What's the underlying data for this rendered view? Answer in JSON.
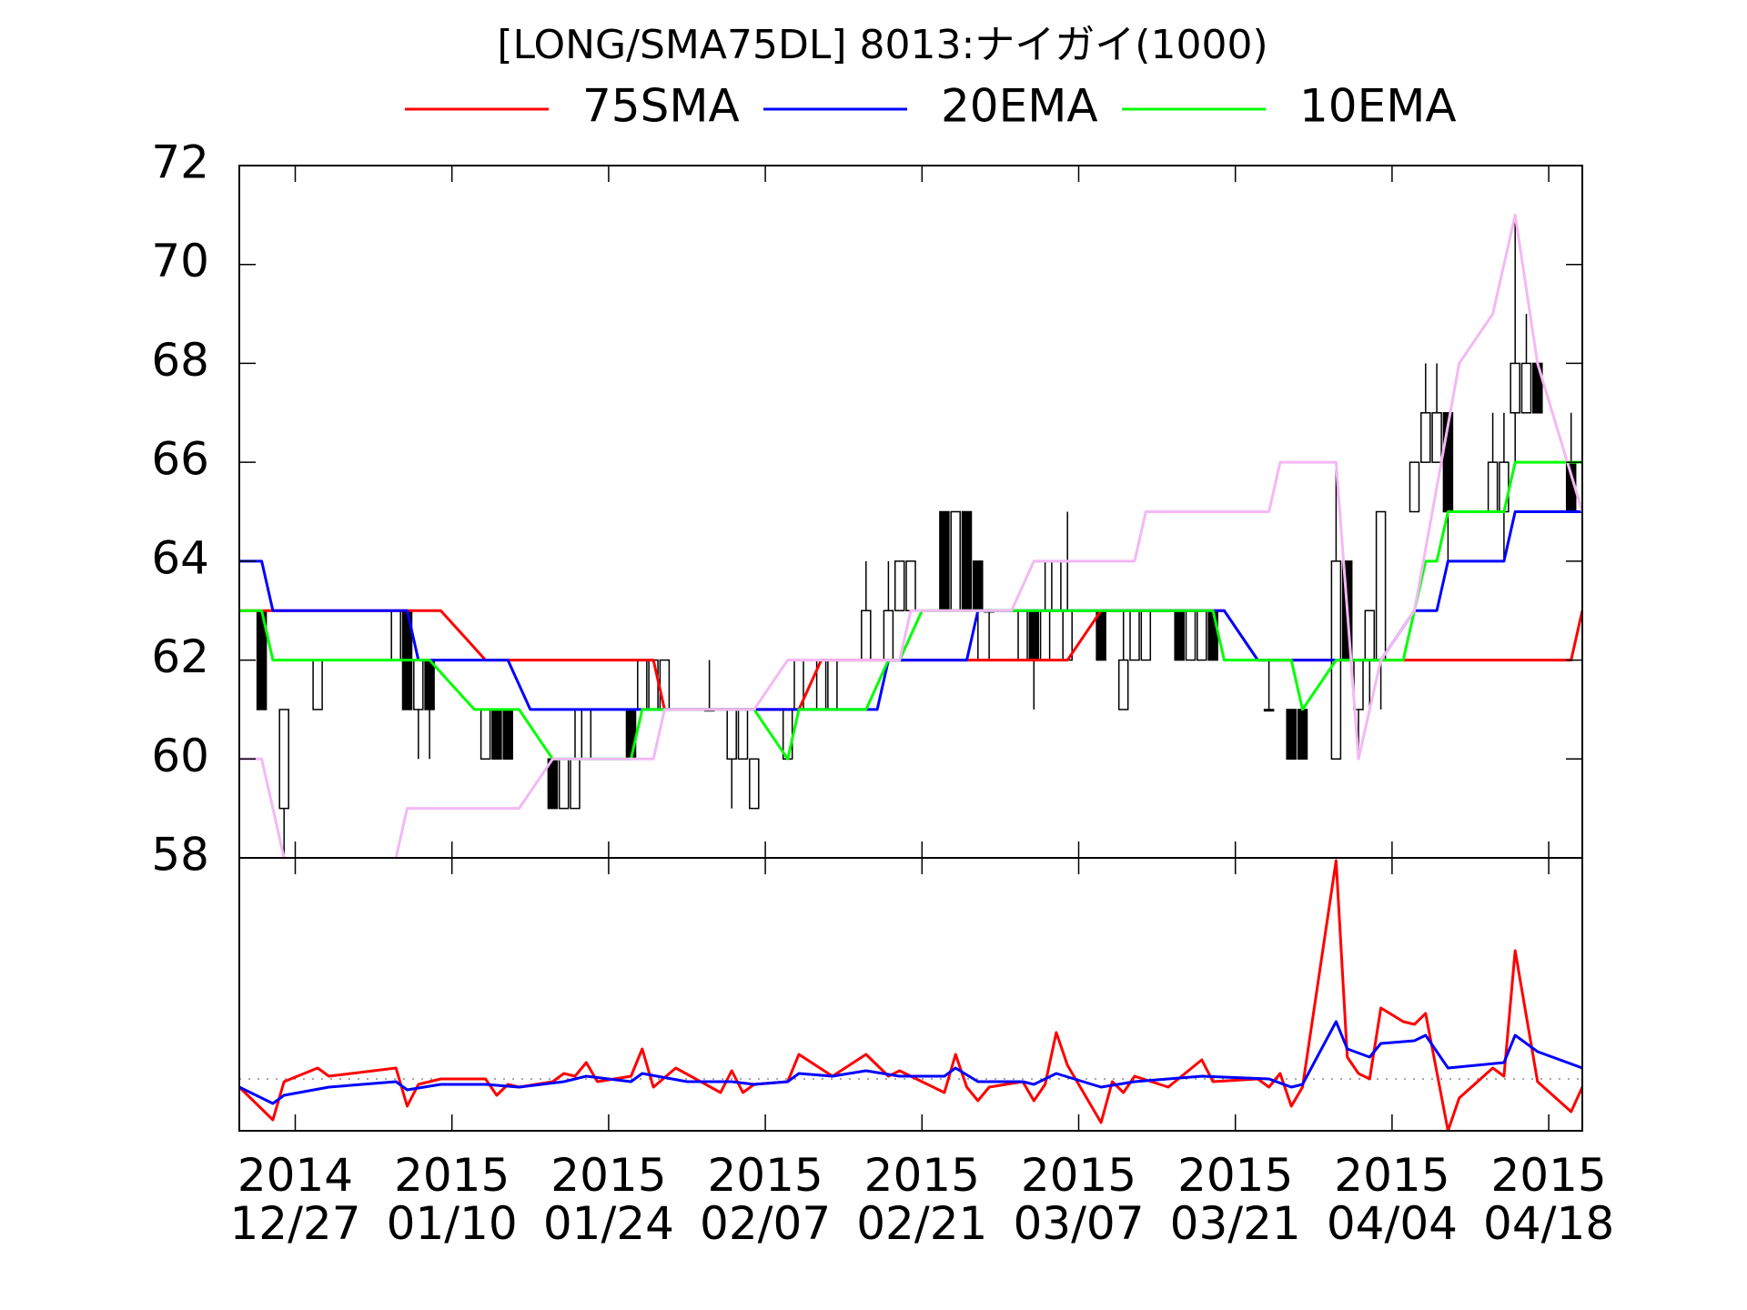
{
  "chart_data": [
    {
      "type": "candlestick",
      "title": "[LONG/SMA75DL] 8013:ナイガイ(1000)",
      "xlim": [
        "2014-12-22",
        "2015-04-21"
      ],
      "ylim": [
        58,
        72
      ],
      "yticks": [
        58,
        60,
        62,
        64,
        66,
        68,
        70,
        72
      ],
      "candles": {
        "x": [
          "2014-12-24",
          "2014-12-26",
          "2014-12-29",
          "2015-01-05",
          "2015-01-06",
          "2015-01-07",
          "2015-01-08",
          "2015-01-13",
          "2015-01-14",
          "2015-01-15",
          "2015-01-19",
          "2015-01-20",
          "2015-01-21",
          "2015-01-22",
          "2015-01-26",
          "2015-01-27",
          "2015-01-28",
          "2015-01-29",
          "2015-02-02",
          "2015-02-04",
          "2015-02-05",
          "2015-02-06",
          "2015-02-09",
          "2015-02-10",
          "2015-02-12",
          "2015-02-13",
          "2015-02-16",
          "2015-02-18",
          "2015-02-19",
          "2015-02-20",
          "2015-02-23",
          "2015-02-24",
          "2015-02-25",
          "2015-02-26",
          "2015-02-27",
          "2015-03-02",
          "2015-03-03",
          "2015-03-04",
          "2015-03-05",
          "2015-03-06",
          "2015-03-09",
          "2015-03-11",
          "2015-03-12",
          "2015-03-13",
          "2015-03-16",
          "2015-03-17",
          "2015-03-18",
          "2015-03-19",
          "2015-03-24",
          "2015-03-26",
          "2015-03-27",
          "2015-03-30",
          "2015-03-31",
          "2015-04-01",
          "2015-04-02",
          "2015-04-03",
          "2015-04-06",
          "2015-04-07",
          "2015-04-08",
          "2015-04-09",
          "2015-04-13",
          "2015-04-14",
          "2015-04-15",
          "2015-04-16",
          "2015-04-17",
          "2015-04-20"
        ],
        "open": [
          63,
          59,
          61,
          62,
          63,
          61,
          62,
          60,
          61,
          61,
          60,
          59,
          59,
          60,
          61,
          61,
          61,
          61,
          61,
          60,
          60,
          59,
          60,
          61,
          61,
          61,
          62,
          62,
          63,
          63,
          65,
          63,
          65,
          64,
          63,
          62,
          63,
          62,
          63,
          62,
          63,
          61,
          62,
          62,
          63,
          62,
          62,
          63,
          61,
          61,
          61,
          60,
          64,
          61,
          62,
          62,
          65,
          66,
          66,
          67,
          65,
          65,
          67,
          67,
          68,
          66
        ],
        "high": [
          63,
          61,
          62,
          63,
          63,
          62,
          62,
          61,
          61,
          61,
          60,
          60,
          61,
          61,
          61,
          62,
          62,
          62,
          62,
          61,
          61,
          60,
          61,
          62,
          62,
          62,
          64,
          64,
          64,
          64,
          65,
          65,
          65,
          64,
          63,
          63,
          63,
          64,
          64,
          65,
          63,
          63,
          63,
          63,
          63,
          63,
          63,
          63,
          62,
          61,
          61,
          66,
          64,
          62,
          63,
          65,
          66,
          68,
          68,
          67,
          67,
          67,
          71,
          69,
          68,
          67
        ],
        "low": [
          61,
          58,
          61,
          62,
          61,
          60,
          60,
          60,
          60,
          60,
          59,
          59,
          59,
          60,
          60,
          61,
          61,
          61,
          61,
          59,
          60,
          59,
          60,
          61,
          61,
          61,
          62,
          62,
          63,
          63,
          63,
          63,
          63,
          62,
          62,
          62,
          61,
          62,
          63,
          62,
          62,
          61,
          62,
          62,
          62,
          62,
          62,
          62,
          61,
          60,
          60,
          60,
          62,
          60,
          61,
          61,
          65,
          66,
          66,
          64,
          65,
          64,
          66,
          67,
          67,
          65
        ],
        "close": [
          61,
          61,
          62,
          63,
          61,
          62,
          61,
          61,
          60,
          60,
          59,
          60,
          60,
          61,
          60,
          62,
          62,
          62,
          61,
          61,
          61,
          60,
          61,
          62,
          62,
          62,
          63,
          63,
          64,
          64,
          63,
          65,
          63,
          63,
          63,
          63,
          62,
          63,
          64,
          63,
          62,
          62,
          63,
          63,
          62,
          63,
          63,
          62,
          61,
          60,
          60,
          64,
          62,
          62,
          63,
          65,
          66,
          67,
          67,
          65,
          66,
          66,
          68,
          68,
          67,
          65
        ]
      },
      "series": [
        {
          "name": "75SMA",
          "color": "#ff0000",
          "x": [
            "2014-12-22",
            "2015-01-09",
            "2015-01-13",
            "2015-01-28",
            "2015-01-29",
            "2015-02-10",
            "2015-02-12",
            "2015-03-06",
            "2015-03-09",
            "2015-03-20",
            "2015-03-23",
            "2015-04-20",
            "2015-04-21"
          ],
          "values": [
            63,
            63,
            62,
            62,
            61,
            61,
            62,
            62,
            63,
            63,
            62,
            62,
            63
          ]
        },
        {
          "name": "20EMA",
          "color": "#0000ff",
          "x": [
            "2014-12-22",
            "2014-12-24",
            "2014-12-25",
            "2015-01-06",
            "2015-01-07",
            "2015-01-15",
            "2015-01-17",
            "2015-02-17",
            "2015-02-18",
            "2015-02-25",
            "2015-02-26",
            "2015-03-20",
            "2015-03-23",
            "2015-04-03",
            "2015-04-06",
            "2015-04-08",
            "2015-04-09",
            "2015-04-14",
            "2015-04-15",
            "2015-04-21"
          ],
          "values": [
            64,
            64,
            63,
            63,
            62,
            62,
            61,
            61,
            62,
            62,
            63,
            63,
            62,
            62,
            63,
            63,
            64,
            64,
            65,
            65
          ]
        },
        {
          "name": "10EMA",
          "color": "#00ff00",
          "x": [
            "2014-12-22",
            "2014-12-24",
            "2014-12-25",
            "2015-01-08",
            "2015-01-12",
            "2015-01-16",
            "2015-01-19",
            "2015-01-26",
            "2015-01-27",
            "2015-02-06",
            "2015-02-09",
            "2015-02-10",
            "2015-02-16",
            "2015-02-18",
            "2015-02-19",
            "2015-02-21",
            "2015-03-19",
            "2015-03-20",
            "2015-03-26",
            "2015-03-27",
            "2015-03-30",
            "2015-04-05",
            "2015-04-06",
            "2015-04-07",
            "2015-04-08",
            "2015-04-09",
            "2015-04-14",
            "2015-04-15",
            "2015-04-21"
          ],
          "values": [
            63,
            63,
            62,
            62,
            61,
            61,
            60,
            60,
            61,
            61,
            60,
            61,
            61,
            62,
            62,
            63,
            63,
            62,
            62,
            61,
            62,
            62,
            63,
            64,
            64,
            65,
            65,
            66,
            66
          ]
        },
        {
          "color": "#f4b8f4",
          "x": [
            "2014-12-22",
            "2014-12-24",
            "2014-12-26",
            "2014-12-31",
            "2015-01-05",
            "2015-01-06",
            "2015-01-16",
            "2015-01-19",
            "2015-01-28",
            "2015-01-29",
            "2015-02-06",
            "2015-02-09",
            "2015-02-19",
            "2015-02-20",
            "2015-03-01",
            "2015-03-03",
            "2015-03-12",
            "2015-03-13",
            "2015-03-24",
            "2015-03-25",
            "2015-03-30",
            "2015-04-01",
            "2015-04-03",
            "2015-04-06",
            "2015-04-10",
            "2015-04-13",
            "2015-04-15",
            "2015-04-17",
            "2015-04-21"
          ],
          "values": [
            60,
            60,
            58,
            null,
            58,
            59,
            59,
            60,
            60,
            61,
            61,
            62,
            62,
            63,
            63,
            64,
            64,
            65,
            65,
            66,
            66,
            60,
            62,
            63,
            68,
            69,
            71,
            68,
            65
          ]
        }
      ]
    },
    {
      "type": "line",
      "xlim": [
        "2014-12-22",
        "2015-04-21"
      ],
      "ylim": [
        0,
        100
      ],
      "reference_line": 19,
      "xticks": [
        {
          "value": "2014-12-27",
          "label": "2014\n12/27"
        },
        {
          "value": "2015-01-10",
          "label": "2015\n01/10"
        },
        {
          "value": "2015-01-24",
          "label": "2015\n01/24"
        },
        {
          "value": "2015-02-07",
          "label": "2015\n02/07"
        },
        {
          "value": "2015-02-21",
          "label": "2015\n02/21"
        },
        {
          "value": "2015-03-07",
          "label": "2015\n03/07"
        },
        {
          "value": "2015-03-21",
          "label": "2015\n03/21"
        },
        {
          "value": "2015-04-04",
          "label": "2015\n04/04"
        },
        {
          "value": "2015-04-18",
          "label": "2015\n04/18"
        }
      ],
      "series": [
        {
          "color": "#ff0000",
          "x": [
            "2014-12-22",
            "2014-12-25",
            "2014-12-26",
            "2014-12-29",
            "2014-12-30",
            "2015-01-05",
            "2015-01-06",
            "2015-01-07",
            "2015-01-09",
            "2015-01-13",
            "2015-01-14",
            "2015-01-15",
            "2015-01-16",
            "2015-01-19",
            "2015-01-20",
            "2015-01-21",
            "2015-01-22",
            "2015-01-23",
            "2015-01-26",
            "2015-01-27",
            "2015-01-28",
            "2015-01-30",
            "2015-02-03",
            "2015-02-04",
            "2015-02-05",
            "2015-02-06",
            "2015-02-09",
            "2015-02-10",
            "2015-02-13",
            "2015-02-16",
            "2015-02-18",
            "2015-02-19",
            "2015-02-23",
            "2015-02-24",
            "2015-02-25",
            "2015-02-26",
            "2015-02-27",
            "2015-03-02",
            "2015-03-03",
            "2015-03-04",
            "2015-03-05",
            "2015-03-06",
            "2015-03-09",
            "2015-03-10",
            "2015-03-11",
            "2015-03-12",
            "2015-03-15",
            "2015-03-18",
            "2015-03-19",
            "2015-03-23",
            "2015-03-24",
            "2015-03-25",
            "2015-03-26",
            "2015-03-27",
            "2015-03-30",
            "2015-03-31",
            "2015-04-01",
            "2015-04-02",
            "2015-04-03",
            "2015-04-05",
            "2015-04-06",
            "2015-04-07",
            "2015-04-09",
            "2015-04-10",
            "2015-04-13",
            "2015-04-14",
            "2015-04-15",
            "2015-04-17",
            "2015-04-20",
            "2015-04-21"
          ],
          "values": [
            16,
            4,
            18,
            23,
            20,
            23,
            9,
            17,
            19,
            19,
            13,
            17,
            16,
            18,
            21,
            20,
            25,
            18,
            20,
            30,
            16,
            23,
            14,
            22,
            14,
            17,
            18,
            28,
            20,
            28,
            20,
            22,
            14,
            28,
            16,
            11,
            16,
            18,
            11,
            17,
            36,
            24,
            3,
            18,
            14,
            20,
            16,
            26,
            18,
            19,
            16,
            21,
            9,
            16,
            99,
            27,
            21,
            19,
            45,
            40,
            39,
            43,
            0,
            12,
            23,
            20,
            66,
            18,
            7,
            16
          ]
        },
        {
          "color": "#0000ff",
          "x": [
            "2014-12-22",
            "2014-12-25",
            "2014-12-26",
            "2014-12-30",
            "2015-01-05",
            "2015-01-06",
            "2015-01-09",
            "2015-01-13",
            "2015-01-16",
            "2015-01-20",
            "2015-01-22",
            "2015-01-26",
            "2015-01-27",
            "2015-01-31",
            "2015-02-04",
            "2015-02-06",
            "2015-02-09",
            "2015-02-10",
            "2015-02-13",
            "2015-02-16",
            "2015-02-19",
            "2015-02-23",
            "2015-02-24",
            "2015-02-26",
            "2015-03-02",
            "2015-03-03",
            "2015-03-05",
            "2015-03-09",
            "2015-03-12",
            "2015-03-18",
            "2015-03-24",
            "2015-03-26",
            "2015-03-27",
            "2015-03-30",
            "2015-03-31",
            "2015-04-02",
            "2015-04-03",
            "2015-04-06",
            "2015-04-07",
            "2015-04-09",
            "2015-04-14",
            "2015-04-15",
            "2015-04-17",
            "2015-04-21"
          ],
          "values": [
            16,
            10,
            13,
            16,
            18,
            15,
            17,
            17,
            16,
            18,
            20,
            18,
            21,
            18,
            18,
            17,
            18,
            21,
            20,
            22,
            20,
            20,
            23,
            18,
            18,
            17,
            21,
            16,
            18,
            20,
            19,
            16,
            17,
            40,
            30,
            27,
            32,
            33,
            35,
            23,
            25,
            35,
            29,
            23
          ]
        }
      ]
    }
  ]
}
